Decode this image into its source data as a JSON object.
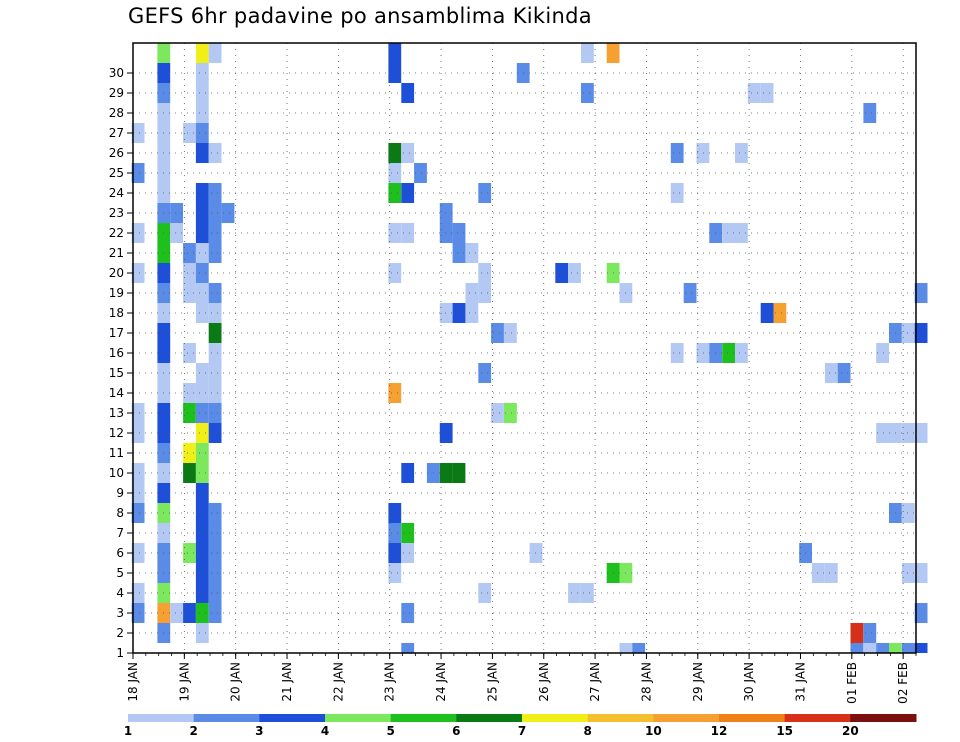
{
  "chart_data": {
    "type": "heatmap",
    "title": "GEFS 6hr padavine po ansamblima Kikinda",
    "xlabel": "",
    "ylabel": "",
    "x_ticks": [
      "18 JAN",
      "19 JAN",
      "20 JAN",
      "21 JAN",
      "22 JAN",
      "23 JAN",
      "24 JAN",
      "25 JAN",
      "26 JAN",
      "27 JAN",
      "28 JAN",
      "29 JAN",
      "30 JAN",
      "31 JAN",
      "01 FEB",
      "02 FEB"
    ],
    "x_range_days": [
      0,
      15.25
    ],
    "y_ticks": [
      "1",
      "2",
      "3",
      "4",
      "5",
      "6",
      "7",
      "8",
      "9",
      "10",
      "11",
      "12",
      "13",
      "14",
      "15",
      "16",
      "17",
      "18",
      "19",
      "20",
      "21",
      "22",
      "23",
      "24",
      "25",
      "26",
      "27",
      "28",
      "29",
      "30"
    ],
    "y_range": [
      0,
      30
    ],
    "grid": true,
    "colorbar": {
      "labels": [
        "1",
        "2",
        "3",
        "4",
        "5",
        "6",
        "7",
        "8",
        "10",
        "12",
        "15",
        "20"
      ],
      "colors": [
        "#b3c8f2",
        "#5a8be6",
        "#1e4fd8",
        "#7ce85e",
        "#1ec01e",
        "#0a7a14",
        "#f0f018",
        "#f5c030",
        "#f5a030",
        "#f08018",
        "#d83018",
        "#7a1010"
      ]
    },
    "cells": [
      [
        0.6,
        1,
        "#5a8be6"
      ],
      [
        0.6,
        2,
        "#f5a030"
      ],
      [
        0.6,
        3,
        "#7ce85e"
      ],
      [
        0.6,
        4,
        "#5a8be6"
      ],
      [
        0.6,
        5,
        "#5a8be6"
      ],
      [
        0.6,
        6,
        "#b3c8f2"
      ],
      [
        0.6,
        7,
        "#7ce85e"
      ],
      [
        0.6,
        8,
        "#1e4fd8"
      ],
      [
        0.6,
        9,
        "#b3c8f2"
      ],
      [
        0.6,
        10,
        "#5a8be6"
      ],
      [
        0.6,
        11,
        "#1e4fd8"
      ],
      [
        0.6,
        12,
        "#1e4fd8"
      ],
      [
        0.6,
        13,
        "#b3c8f2"
      ],
      [
        0.6,
        14,
        "#b3c8f2"
      ],
      [
        0.6,
        15,
        "#1e4fd8"
      ],
      [
        0.6,
        16,
        "#1e4fd8"
      ],
      [
        0.6,
        17,
        "#b3c8f2"
      ],
      [
        0.6,
        18,
        "#5a8be6"
      ],
      [
        0.6,
        19,
        "#1e4fd8"
      ],
      [
        0.6,
        20,
        "#1ec01e"
      ],
      [
        0.6,
        21,
        "#1ec01e"
      ],
      [
        0.6,
        22,
        "#5a8be6"
      ],
      [
        0.6,
        23,
        "#b3c8f2"
      ],
      [
        0.6,
        24,
        "#b3c8f2"
      ],
      [
        0.6,
        25,
        "#b3c8f2"
      ],
      [
        0.6,
        26,
        "#b3c8f2"
      ],
      [
        0.6,
        27,
        "#b3c8f2"
      ],
      [
        0.6,
        28,
        "#5a8be6"
      ],
      [
        0.6,
        29,
        "#1e4fd8"
      ],
      [
        0.6,
        30,
        "#7ce85e"
      ],
      [
        0.1,
        2,
        "#5a8be6"
      ],
      [
        0.1,
        3,
        "#b3c8f2"
      ],
      [
        0.1,
        5,
        "#b3c8f2"
      ],
      [
        0.1,
        7,
        "#5a8be6"
      ],
      [
        0.1,
        8,
        "#b3c8f2"
      ],
      [
        0.1,
        9,
        "#b3c8f2"
      ],
      [
        0.1,
        11,
        "#b3c8f2"
      ],
      [
        0.1,
        12,
        "#b3c8f2"
      ],
      [
        0.1,
        19,
        "#b3c8f2"
      ],
      [
        0.1,
        21,
        "#b3c8f2"
      ],
      [
        0.1,
        24,
        "#5a8be6"
      ],
      [
        0.1,
        26,
        "#b3c8f2"
      ],
      [
        0.85,
        2,
        "#b3c8f2"
      ],
      [
        0.85,
        21,
        "#b3c8f2"
      ],
      [
        0.85,
        22,
        "#5a8be6"
      ],
      [
        1.1,
        2,
        "#1e4fd8"
      ],
      [
        1.1,
        5,
        "#7ce85e"
      ],
      [
        1.1,
        9,
        "#0a7a14"
      ],
      [
        1.1,
        10,
        "#f0f018"
      ],
      [
        1.1,
        12,
        "#1ec01e"
      ],
      [
        1.1,
        13,
        "#b3c8f2"
      ],
      [
        1.1,
        15,
        "#b3c8f2"
      ],
      [
        1.1,
        18,
        "#b3c8f2"
      ],
      [
        1.1,
        19,
        "#b3c8f2"
      ],
      [
        1.1,
        20,
        "#5a8be6"
      ],
      [
        1.1,
        26,
        "#b3c8f2"
      ],
      [
        1.35,
        1,
        "#b3c8f2"
      ],
      [
        1.35,
        2,
        "#1ec01e"
      ],
      [
        1.35,
        3,
        "#1e4fd8"
      ],
      [
        1.35,
        4,
        "#1e4fd8"
      ],
      [
        1.35,
        5,
        "#1e4fd8"
      ],
      [
        1.35,
        6,
        "#1e4fd8"
      ],
      [
        1.35,
        7,
        "#1e4fd8"
      ],
      [
        1.35,
        8,
        "#1e4fd8"
      ],
      [
        1.35,
        9,
        "#7ce85e"
      ],
      [
        1.35,
        10,
        "#7ce85e"
      ],
      [
        1.35,
        11,
        "#f0f018"
      ],
      [
        1.35,
        12,
        "#5a8be6"
      ],
      [
        1.35,
        13,
        "#b3c8f2"
      ],
      [
        1.35,
        14,
        "#b3c8f2"
      ],
      [
        1.35,
        17,
        "#b3c8f2"
      ],
      [
        1.35,
        18,
        "#b3c8f2"
      ],
      [
        1.35,
        19,
        "#5a8be6"
      ],
      [
        1.35,
        20,
        "#b3c8f2"
      ],
      [
        1.35,
        21,
        "#1e4fd8"
      ],
      [
        1.35,
        22,
        "#1e4fd8"
      ],
      [
        1.35,
        23,
        "#1e4fd8"
      ],
      [
        1.35,
        25,
        "#1e4fd8"
      ],
      [
        1.35,
        26,
        "#5a8be6"
      ],
      [
        1.35,
        27,
        "#b3c8f2"
      ],
      [
        1.35,
        28,
        "#b3c8f2"
      ],
      [
        1.35,
        29,
        "#b3c8f2"
      ],
      [
        1.35,
        30,
        "#f0f018"
      ],
      [
        1.6,
        2,
        "#5a8be6"
      ],
      [
        1.6,
        3,
        "#5a8be6"
      ],
      [
        1.6,
        4,
        "#5a8be6"
      ],
      [
        1.6,
        5,
        "#5a8be6"
      ],
      [
        1.6,
        6,
        "#5a8be6"
      ],
      [
        1.6,
        7,
        "#5a8be6"
      ],
      [
        1.6,
        11,
        "#1e4fd8"
      ],
      [
        1.6,
        12,
        "#5a8be6"
      ],
      [
        1.6,
        13,
        "#b3c8f2"
      ],
      [
        1.6,
        14,
        "#b3c8f2"
      ],
      [
        1.6,
        15,
        "#b3c8f2"
      ],
      [
        1.6,
        16,
        "#0a7a14"
      ],
      [
        1.6,
        17,
        "#b3c8f2"
      ],
      [
        1.6,
        18,
        "#5a8be6"
      ],
      [
        1.6,
        20,
        "#5a8be6"
      ],
      [
        1.6,
        21,
        "#5a8be6"
      ],
      [
        1.6,
        22,
        "#5a8be6"
      ],
      [
        1.6,
        23,
        "#5a8be6"
      ],
      [
        1.6,
        25,
        "#b3c8f2"
      ],
      [
        1.6,
        30,
        "#b3c8f2"
      ],
      [
        1.85,
        22,
        "#5a8be6"
      ],
      [
        5.1,
        4,
        "#b3c8f2"
      ],
      [
        5.1,
        5,
        "#1e4fd8"
      ],
      [
        5.1,
        6,
        "#5a8be6"
      ],
      [
        5.1,
        7,
        "#1e4fd8"
      ],
      [
        5.1,
        13,
        "#f5a030"
      ],
      [
        5.1,
        19,
        "#b3c8f2"
      ],
      [
        5.1,
        21,
        "#b3c8f2"
      ],
      [
        5.1,
        23,
        "#1ec01e"
      ],
      [
        5.1,
        24,
        "#b3c8f2"
      ],
      [
        5.1,
        25,
        "#0a7a14"
      ],
      [
        5.1,
        29,
        "#1e4fd8"
      ],
      [
        5.1,
        30,
        "#1e4fd8"
      ],
      [
        5.35,
        0,
        "#5a8be6"
      ],
      [
        5.35,
        2,
        "#5a8be6"
      ],
      [
        5.35,
        5,
        "#b3c8f2"
      ],
      [
        5.35,
        6,
        "#1ec01e"
      ],
      [
        5.35,
        9,
        "#1e4fd8"
      ],
      [
        5.35,
        21,
        "#b3c8f2"
      ],
      [
        5.35,
        23,
        "#1e4fd8"
      ],
      [
        5.35,
        25,
        "#b3c8f2"
      ],
      [
        5.35,
        28,
        "#1e4fd8"
      ],
      [
        5.6,
        24,
        "#5a8be6"
      ],
      [
        5.85,
        9,
        "#5a8be6"
      ],
      [
        6.1,
        9,
        "#0a7a14"
      ],
      [
        6.1,
        11,
        "#1e4fd8"
      ],
      [
        6.1,
        17,
        "#b3c8f2"
      ],
      [
        6.1,
        21,
        "#5a8be6"
      ],
      [
        6.1,
        22,
        "#5a8be6"
      ],
      [
        6.35,
        9,
        "#0a7a14"
      ],
      [
        6.35,
        17,
        "#1e4fd8"
      ],
      [
        6.35,
        20,
        "#5a8be6"
      ],
      [
        6.35,
        21,
        "#5a8be6"
      ],
      [
        6.6,
        17,
        "#b3c8f2"
      ],
      [
        6.6,
        18,
        "#b3c8f2"
      ],
      [
        6.6,
        20,
        "#b3c8f2"
      ],
      [
        6.85,
        3,
        "#b3c8f2"
      ],
      [
        6.85,
        14,
        "#5a8be6"
      ],
      [
        6.85,
        18,
        "#b3c8f2"
      ],
      [
        6.85,
        19,
        "#b3c8f2"
      ],
      [
        6.85,
        23,
        "#5a8be6"
      ],
      [
        7.1,
        12,
        "#b3c8f2"
      ],
      [
        7.1,
        16,
        "#5a8be6"
      ],
      [
        7.35,
        12,
        "#7ce85e"
      ],
      [
        7.35,
        16,
        "#b3c8f2"
      ],
      [
        7.6,
        29,
        "#5a8be6"
      ],
      [
        7.85,
        5,
        "#b3c8f2"
      ],
      [
        8.35,
        19,
        "#1e4fd8"
      ],
      [
        8.6,
        3,
        "#b3c8f2"
      ],
      [
        8.6,
        19,
        "#b3c8f2"
      ],
      [
        8.85,
        3,
        "#b3c8f2"
      ],
      [
        8.85,
        28,
        "#5a8be6"
      ],
      [
        8.85,
        30,
        "#b3c8f2"
      ],
      [
        9.35,
        4,
        "#1ec01e"
      ],
      [
        9.35,
        19,
        "#7ce85e"
      ],
      [
        9.35,
        30,
        "#f5a030"
      ],
      [
        9.6,
        0,
        "#b3c8f2"
      ],
      [
        9.6,
        4,
        "#7ce85e"
      ],
      [
        9.6,
        18,
        "#b3c8f2"
      ],
      [
        9.85,
        0,
        "#5a8be6"
      ],
      [
        10.6,
        15,
        "#b3c8f2"
      ],
      [
        10.6,
        23,
        "#b3c8f2"
      ],
      [
        10.6,
        25,
        "#5a8be6"
      ],
      [
        10.85,
        18,
        "#5a8be6"
      ],
      [
        11.1,
        15,
        "#b3c8f2"
      ],
      [
        11.1,
        25,
        "#b3c8f2"
      ],
      [
        11.35,
        15,
        "#5a8be6"
      ],
      [
        11.35,
        21,
        "#5a8be6"
      ],
      [
        11.6,
        15,
        "#1ec01e"
      ],
      [
        11.6,
        21,
        "#b3c8f2"
      ],
      [
        11.85,
        15,
        "#b3c8f2"
      ],
      [
        11.85,
        21,
        "#b3c8f2"
      ],
      [
        11.85,
        25,
        "#b3c8f2"
      ],
      [
        12.35,
        17,
        "#1e4fd8"
      ],
      [
        12.35,
        28,
        "#b3c8f2"
      ],
      [
        12.6,
        17,
        "#f5a030"
      ],
      [
        12.1,
        28,
        "#b3c8f2"
      ],
      [
        13.1,
        5,
        "#5a8be6"
      ],
      [
        13.35,
        4,
        "#b3c8f2"
      ],
      [
        13.6,
        4,
        "#b3c8f2"
      ],
      [
        13.6,
        14,
        "#b3c8f2"
      ],
      [
        13.85,
        14,
        "#5a8be6"
      ],
      [
        14.1,
        0,
        "#5a8be6"
      ],
      [
        14.1,
        1,
        "#d83018"
      ],
      [
        14.35,
        0,
        "#b3c8f2"
      ],
      [
        14.35,
        1,
        "#5a8be6"
      ],
      [
        14.35,
        27,
        "#5a8be6"
      ],
      [
        14.6,
        0,
        "#5a8be6"
      ],
      [
        14.6,
        11,
        "#b3c8f2"
      ],
      [
        14.6,
        15,
        "#b3c8f2"
      ],
      [
        14.85,
        0,
        "#7ce85e"
      ],
      [
        14.85,
        11,
        "#b3c8f2"
      ],
      [
        14.85,
        16,
        "#5a8be6"
      ],
      [
        14.85,
        7,
        "#5a8be6"
      ],
      [
        15.1,
        0,
        "#5a8be6"
      ],
      [
        15.1,
        11,
        "#b3c8f2"
      ],
      [
        15.1,
        16,
        "#b3c8f2"
      ],
      [
        15.1,
        7,
        "#b3c8f2"
      ],
      [
        15.1,
        4,
        "#b3c8f2"
      ],
      [
        15.35,
        0,
        "#1e4fd8"
      ],
      [
        15.35,
        4,
        "#b3c8f2"
      ],
      [
        15.35,
        11,
        "#b3c8f2"
      ],
      [
        15.35,
        2,
        "#5a8be6"
      ],
      [
        15.35,
        18,
        "#5a8be6"
      ],
      [
        15.35,
        16,
        "#1e4fd8"
      ]
    ]
  }
}
